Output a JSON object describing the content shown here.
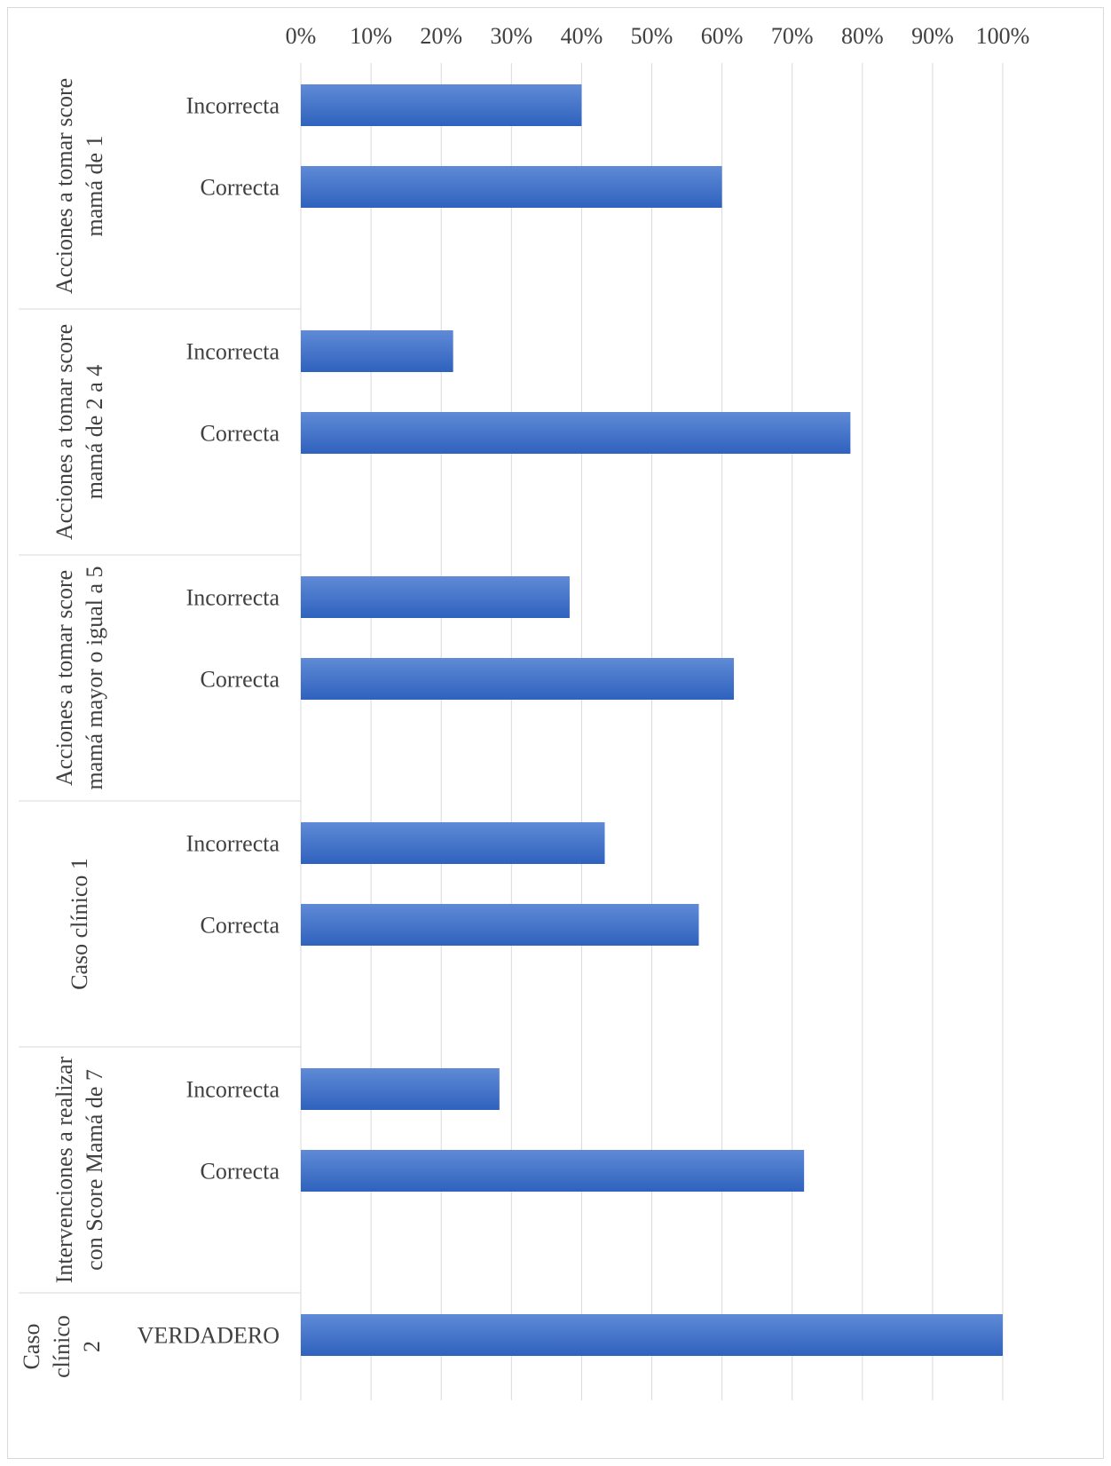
{
  "chart_data": {
    "type": "bar",
    "orientation": "horizontal",
    "title": "",
    "xlabel": "",
    "ylabel": "",
    "xlim": [
      0,
      100
    ],
    "x_ticks": [
      "0%",
      "10%",
      "20%",
      "30%",
      "40%",
      "50%",
      "60%",
      "70%",
      "80%",
      "90%",
      "100%"
    ],
    "grid": true,
    "legend": "none",
    "bar_color": "#4472c4",
    "groups": [
      {
        "label": "Acciones a tomar score mamá de 1",
        "label_lines": [
          "Acciones a tomar score",
          "mamá de 1"
        ],
        "bars": [
          {
            "category": "Incorrecta",
            "value": 40
          },
          {
            "category": "Correcta",
            "value": 60
          }
        ]
      },
      {
        "label": "Acciones a tomar score mamá de 2 a 4",
        "label_lines": [
          "Acciones a tomar score",
          "mamá de 2 a 4"
        ],
        "bars": [
          {
            "category": "Incorrecta",
            "value": 21.7
          },
          {
            "category": "Correcta",
            "value": 78.3
          }
        ]
      },
      {
        "label": "Acciones a tomar score mamá mayor o igual a 5",
        "label_lines": [
          "Acciones a tomar score",
          "mamá mayor o igual a 5"
        ],
        "bars": [
          {
            "category": "Incorrecta",
            "value": 38.3
          },
          {
            "category": "Correcta",
            "value": 61.7
          }
        ]
      },
      {
        "label": "Caso clínico 1",
        "label_lines": [
          "Caso clínico 1"
        ],
        "bars": [
          {
            "category": "Incorrecta",
            "value": 43.3
          },
          {
            "category": "Correcta",
            "value": 56.7
          }
        ]
      },
      {
        "label": "Intervenciones a realizar con Score Mamá de 7",
        "label_lines": [
          "Intervenciones a realizar",
          "con Score Mamá de 7"
        ],
        "bars": [
          {
            "category": "Incorrecta",
            "value": 28.3
          },
          {
            "category": "Correcta",
            "value": 71.7
          }
        ]
      },
      {
        "label": "Caso clínico 2",
        "label_lines": [
          "Caso",
          "clínico",
          "2"
        ],
        "bars": [
          {
            "category": "VERDADERO",
            "value": 100
          }
        ]
      }
    ]
  }
}
